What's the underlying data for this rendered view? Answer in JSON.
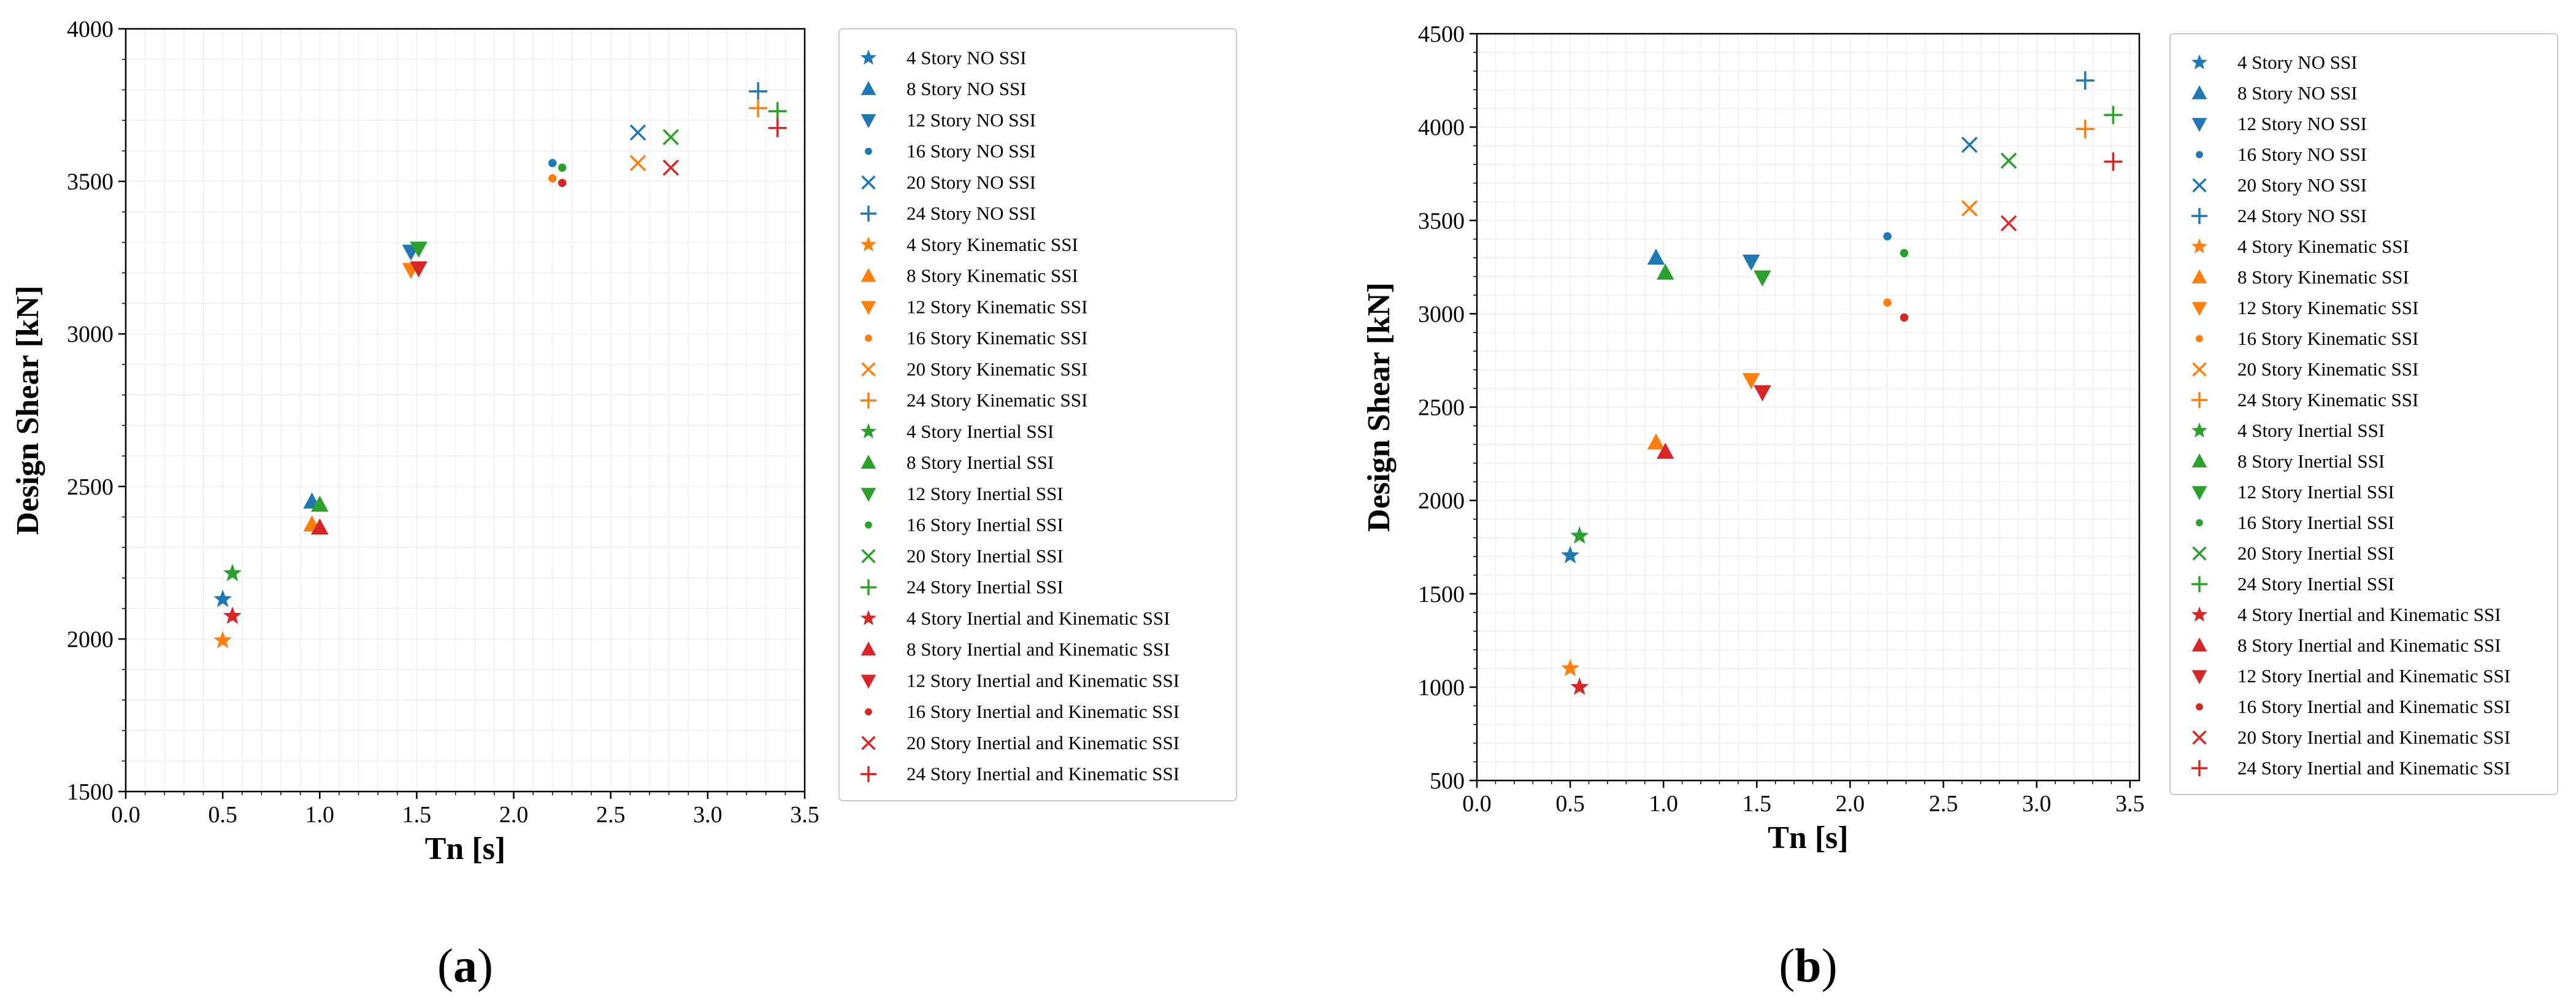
{
  "chart_data": [
    {
      "type": "scatter",
      "panel_label": "(a)",
      "panel_letter": "a",
      "xlabel": "Tn [s]",
      "ylabel": "Design Shear [kN]",
      "xlim": [
        0.0,
        3.5
      ],
      "ylim": [
        1500,
        4000
      ],
      "xticks": [
        "0.0",
        "0.5",
        "1.0",
        "1.5",
        "2.0",
        "2.5",
        "3.0",
        "3.5"
      ],
      "yticks": [
        "1500",
        "2000",
        "2500",
        "3000",
        "3500",
        "4000"
      ],
      "grid": true,
      "legend_position": "right",
      "series": [
        {
          "name": "4 Story NO SSI",
          "color": "#1f77b4",
          "marker": "star",
          "x": 0.5,
          "y": 2130
        },
        {
          "name": "8 Story NO SSI",
          "color": "#1f77b4",
          "marker": "triangle-up",
          "x": 0.96,
          "y": 2450
        },
        {
          "name": "12 Story NO SSI",
          "color": "#1f77b4",
          "marker": "triangle-down",
          "x": 1.47,
          "y": 3270
        },
        {
          "name": "16 Story NO SSI",
          "color": "#1f77b4",
          "marker": "dot",
          "x": 2.2,
          "y": 3560
        },
        {
          "name": "20 Story NO SSI",
          "color": "#1f77b4",
          "marker": "x",
          "x": 2.64,
          "y": 3660
        },
        {
          "name": "24 Story NO SSI",
          "color": "#1f77b4",
          "marker": "plus",
          "x": 3.26,
          "y": 3795
        },
        {
          "name": "4 Story Kinematic SSI",
          "color": "#ff7f0e",
          "marker": "star",
          "x": 0.5,
          "y": 1995
        },
        {
          "name": "8 Story Kinematic SSI",
          "color": "#ff7f0e",
          "marker": "triangle-up",
          "x": 0.96,
          "y": 2375
        },
        {
          "name": "12 Story Kinematic SSI",
          "color": "#ff7f0e",
          "marker": "triangle-down",
          "x": 1.47,
          "y": 3210
        },
        {
          "name": "16 Story Kinematic SSI",
          "color": "#ff7f0e",
          "marker": "dot",
          "x": 2.2,
          "y": 3510
        },
        {
          "name": "20 Story Kinematic SSI",
          "color": "#ff7f0e",
          "marker": "x",
          "x": 2.64,
          "y": 3560
        },
        {
          "name": "24 Story Kinematic SSI",
          "color": "#ff7f0e",
          "marker": "plus",
          "x": 3.26,
          "y": 3740
        },
        {
          "name": "4 Story Inertial SSI",
          "color": "#2ca02c",
          "marker": "star",
          "x": 0.55,
          "y": 2215
        },
        {
          "name": "8 Story Inertial SSI",
          "color": "#2ca02c",
          "marker": "triangle-up",
          "x": 1.0,
          "y": 2440
        },
        {
          "name": "12 Story Inertial SSI",
          "color": "#2ca02c",
          "marker": "triangle-down",
          "x": 1.51,
          "y": 3280
        },
        {
          "name": "16 Story Inertial SSI",
          "color": "#2ca02c",
          "marker": "dot",
          "x": 2.25,
          "y": 3545
        },
        {
          "name": "20 Story Inertial SSI",
          "color": "#2ca02c",
          "marker": "x",
          "x": 2.81,
          "y": 3645
        },
        {
          "name": "24 Story Inertial SSI",
          "color": "#2ca02c",
          "marker": "plus",
          "x": 3.36,
          "y": 3730
        },
        {
          "name": "4 Story Inertial and Kinematic SSI",
          "color": "#d62728",
          "marker": "star",
          "x": 0.55,
          "y": 2075
        },
        {
          "name": "8 Story Inertial and Kinematic SSI",
          "color": "#d62728",
          "marker": "triangle-up",
          "x": 1.0,
          "y": 2365
        },
        {
          "name": "12 Story Inertial and Kinematic SSI",
          "color": "#d62728",
          "marker": "triangle-down",
          "x": 1.51,
          "y": 3215
        },
        {
          "name": "16 Story Inertial and Kinematic SSI",
          "color": "#d62728",
          "marker": "dot",
          "x": 2.25,
          "y": 3495
        },
        {
          "name": "20 Story Inertial and Kinematic SSI",
          "color": "#d62728",
          "marker": "x",
          "x": 2.81,
          "y": 3545
        },
        {
          "name": "24 Story Inertial and Kinematic SSI",
          "color": "#d62728",
          "marker": "plus",
          "x": 3.36,
          "y": 3675
        }
      ]
    },
    {
      "type": "scatter",
      "panel_label": "(b)",
      "panel_letter": "b",
      "xlabel": "Tn [s]",
      "ylabel": "Design Shear [kN]",
      "xlim": [
        0.0,
        3.55
      ],
      "ylim": [
        500,
        4500
      ],
      "xticks": [
        "0.0",
        "0.5",
        "1.0",
        "1.5",
        "2.0",
        "2.5",
        "3.0",
        "3.5"
      ],
      "yticks": [
        "500",
        "1000",
        "1500",
        "2000",
        "2500",
        "3000",
        "3500",
        "4000",
        "4500"
      ],
      "grid": true,
      "legend_position": "right",
      "series": [
        {
          "name": "4 Story NO SSI",
          "color": "#1f77b4",
          "marker": "star",
          "x": 0.5,
          "y": 1705
        },
        {
          "name": "8 Story NO SSI",
          "color": "#1f77b4",
          "marker": "triangle-up",
          "x": 0.96,
          "y": 3300
        },
        {
          "name": "12 Story NO SSI",
          "color": "#1f77b4",
          "marker": "triangle-down",
          "x": 1.47,
          "y": 3280
        },
        {
          "name": "16 Story NO SSI",
          "color": "#1f77b4",
          "marker": "dot",
          "x": 2.2,
          "y": 3415
        },
        {
          "name": "20 Story NO SSI",
          "color": "#1f77b4",
          "marker": "x",
          "x": 2.64,
          "y": 3905
        },
        {
          "name": "24 Story NO SSI",
          "color": "#1f77b4",
          "marker": "plus",
          "x": 3.26,
          "y": 4250
        },
        {
          "name": "4 Story Kinematic SSI",
          "color": "#ff7f0e",
          "marker": "star",
          "x": 0.5,
          "y": 1100
        },
        {
          "name": "8 Story Kinematic SSI",
          "color": "#ff7f0e",
          "marker": "triangle-up",
          "x": 0.96,
          "y": 2310
        },
        {
          "name": "12 Story Kinematic SSI",
          "color": "#ff7f0e",
          "marker": "triangle-down",
          "x": 1.47,
          "y": 2645
        },
        {
          "name": "16 Story Kinematic SSI",
          "color": "#ff7f0e",
          "marker": "dot",
          "x": 2.2,
          "y": 3060
        },
        {
          "name": "20 Story Kinematic SSI",
          "color": "#ff7f0e",
          "marker": "x",
          "x": 2.64,
          "y": 3565
        },
        {
          "name": "24 Story Kinematic SSI",
          "color": "#ff7f0e",
          "marker": "plus",
          "x": 3.26,
          "y": 3990
        },
        {
          "name": "4 Story Inertial SSI",
          "color": "#2ca02c",
          "marker": "star",
          "x": 0.55,
          "y": 1810
        },
        {
          "name": "8 Story Inertial SSI",
          "color": "#2ca02c",
          "marker": "triangle-up",
          "x": 1.01,
          "y": 3220
        },
        {
          "name": "12 Story Inertial SSI",
          "color": "#2ca02c",
          "marker": "triangle-down",
          "x": 1.53,
          "y": 3195
        },
        {
          "name": "16 Story Inertial SSI",
          "color": "#2ca02c",
          "marker": "dot",
          "x": 2.29,
          "y": 3325
        },
        {
          "name": "20 Story Inertial SSI",
          "color": "#2ca02c",
          "marker": "x",
          "x": 2.85,
          "y": 3820
        },
        {
          "name": "24 Story Inertial SSI",
          "color": "#2ca02c",
          "marker": "plus",
          "x": 3.41,
          "y": 4065
        },
        {
          "name": "4 Story Inertial and Kinematic SSI",
          "color": "#d62728",
          "marker": "star",
          "x": 0.55,
          "y": 1000
        },
        {
          "name": "8 Story Inertial and Kinematic SSI",
          "color": "#d62728",
          "marker": "triangle-up",
          "x": 1.01,
          "y": 2260
        },
        {
          "name": "12 Story Inertial and Kinematic SSI",
          "color": "#d62728",
          "marker": "triangle-down",
          "x": 1.53,
          "y": 2580
        },
        {
          "name": "16 Story Inertial and Kinematic SSI",
          "color": "#d62728",
          "marker": "dot",
          "x": 2.29,
          "y": 2980
        },
        {
          "name": "20 Story Inertial and Kinematic SSI",
          "color": "#d62728",
          "marker": "x",
          "x": 2.85,
          "y": 3485
        },
        {
          "name": "24 Story Inertial and Kinematic SSI",
          "color": "#d62728",
          "marker": "plus",
          "x": 3.41,
          "y": 3815
        }
      ]
    }
  ]
}
